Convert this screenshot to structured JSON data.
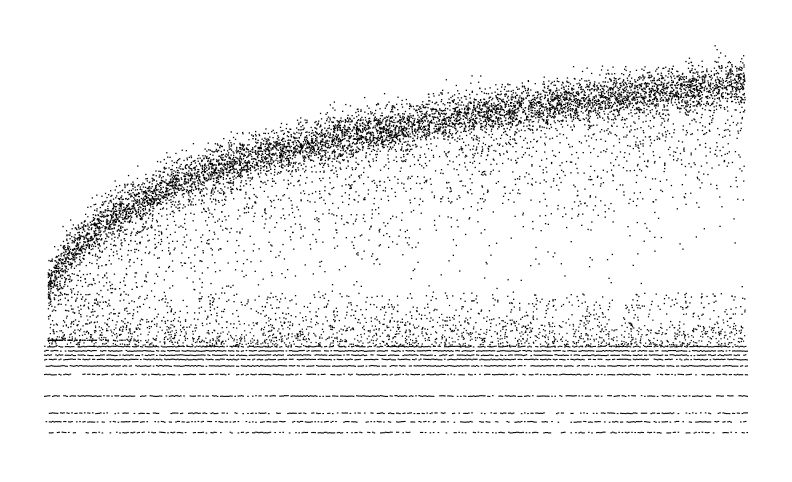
{
  "chart_data": {
    "type": "scatter",
    "title": "",
    "xlabel": "",
    "ylabel": "",
    "axes_visible": false,
    "grid": false,
    "legend": "none",
    "marker_color": "#000000",
    "background_color": "#ffffff",
    "xlim": [
      0,
      1
    ],
    "ylim": [
      0,
      1
    ],
    "discrete_levels": [
      0.065,
      0.09,
      0.11,
      0.15,
      0.2,
      0.22,
      0.235,
      0.245,
      0.255,
      0.265
    ],
    "upper_band": {
      "x_start": 0.005,
      "y_start": 0.39,
      "y_end": 0.88,
      "y_at_knee": 0.56,
      "knee_x": 0.06,
      "spread": 0.06,
      "lower_tail": 0.16
    },
    "points": [
      [
        0.08,
        0.59
      ],
      [
        0.12,
        0.63
      ],
      [
        0.2,
        0.68
      ],
      [
        0.3,
        0.72
      ],
      [
        0.4,
        0.76
      ],
      [
        0.5,
        0.79
      ],
      [
        0.6,
        0.82
      ],
      [
        0.7,
        0.84
      ],
      [
        0.8,
        0.85
      ],
      [
        0.9,
        0.87
      ],
      [
        0.99,
        0.88
      ]
    ]
  }
}
